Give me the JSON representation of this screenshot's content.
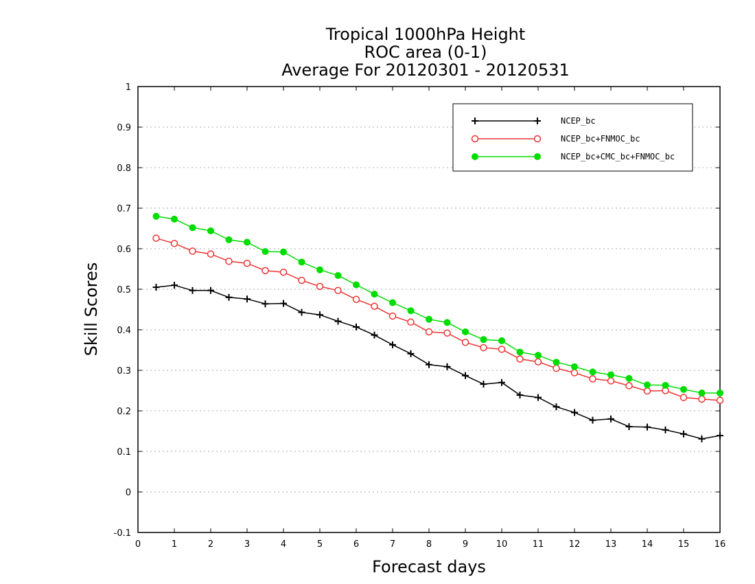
{
  "chart_data": {
    "type": "line",
    "title_lines": [
      "Tropical 1000hPa Height",
      "ROC area (0-1)",
      "Average For 20120301 - 20120531"
    ],
    "xlabel": "Forecast days",
    "ylabel": "Skill Scores",
    "xlim": [
      0,
      16
    ],
    "ylim": [
      -0.1,
      1
    ],
    "xticks": [
      0,
      1,
      2,
      3,
      4,
      5,
      6,
      7,
      8,
      9,
      10,
      11,
      12,
      13,
      14,
      15,
      16
    ],
    "xtick_labels": [
      "0",
      "1",
      "2",
      "3",
      "4",
      "5",
      "6",
      "7",
      "8",
      "9",
      "10",
      "11",
      "12",
      "13",
      "14",
      "15",
      "16"
    ],
    "yticks": [
      -0.1,
      0,
      0.1,
      0.2,
      0.3,
      0.4,
      0.5,
      0.6,
      0.7,
      0.8,
      0.9,
      1
    ],
    "ytick_labels": [
      "-0.1",
      "0",
      "0.1",
      "0.2",
      "0.3",
      "0.4",
      "0.5",
      "0.6",
      "0.7",
      "0.8",
      "0.9",
      "1"
    ],
    "grid": "horizontal-dotted",
    "legend_position": "top-right",
    "x": [
      0.5,
      1,
      1.5,
      2,
      2.5,
      3,
      3.5,
      4,
      4.5,
      5,
      5.5,
      6,
      6.5,
      7,
      7.5,
      8,
      8.5,
      9,
      9.5,
      10,
      10.5,
      11,
      11.5,
      12,
      12.5,
      13,
      13.5,
      14,
      14.5,
      15,
      15.5,
      16
    ],
    "series": [
      {
        "name": "NCEP_bc",
        "color": "#000000",
        "marker": "plus",
        "values": [
          0.505,
          0.51,
          0.497,
          0.497,
          0.48,
          0.476,
          0.464,
          0.465,
          0.443,
          0.437,
          0.421,
          0.407,
          0.387,
          0.363,
          0.341,
          0.314,
          0.309,
          0.287,
          0.266,
          0.27,
          0.239,
          0.233,
          0.21,
          0.196,
          0.177,
          0.18,
          0.161,
          0.16,
          0.153,
          0.143,
          0.131,
          0.139
        ]
      },
      {
        "name": "NCEP_bc+FNMOC_bc",
        "color": "#ee3333",
        "marker": "open-circle",
        "values": [
          0.626,
          0.613,
          0.594,
          0.587,
          0.569,
          0.564,
          0.546,
          0.542,
          0.522,
          0.507,
          0.497,
          0.475,
          0.458,
          0.434,
          0.419,
          0.395,
          0.392,
          0.369,
          0.356,
          0.352,
          0.328,
          0.321,
          0.305,
          0.294,
          0.279,
          0.274,
          0.262,
          0.249,
          0.25,
          0.233,
          0.229,
          0.226
        ]
      },
      {
        "name": "NCEP_bc+CMC_bc+FNMOC_bc",
        "color": "#00dd00",
        "marker": "filled-circle",
        "values": [
          0.68,
          0.673,
          0.652,
          0.644,
          0.622,
          0.616,
          0.593,
          0.592,
          0.567,
          0.548,
          0.534,
          0.511,
          0.488,
          0.467,
          0.447,
          0.426,
          0.418,
          0.395,
          0.376,
          0.373,
          0.345,
          0.337,
          0.32,
          0.309,
          0.296,
          0.289,
          0.28,
          0.264,
          0.263,
          0.253,
          0.244,
          0.244
        ]
      }
    ]
  }
}
